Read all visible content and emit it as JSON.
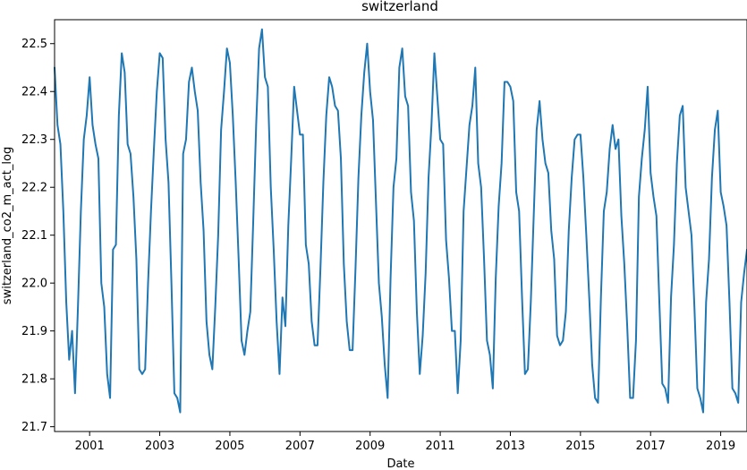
{
  "chart_data": {
    "type": "line",
    "title": "switzerland",
    "xlabel": "Date",
    "ylabel": "switzerland_co2_m_act_log",
    "xlim": [
      "2000-01",
      "2019-10"
    ],
    "ylim": [
      21.69,
      22.55
    ],
    "x_ticks": [
      {
        "date": "2001-01",
        "label": "2001"
      },
      {
        "date": "2003-01",
        "label": "2003"
      },
      {
        "date": "2005-01",
        "label": "2005"
      },
      {
        "date": "2007-01",
        "label": "2007"
      },
      {
        "date": "2009-01",
        "label": "2009"
      },
      {
        "date": "2011-01",
        "label": "2011"
      },
      {
        "date": "2013-01",
        "label": "2013"
      },
      {
        "date": "2015-01",
        "label": "2015"
      },
      {
        "date": "2017-01",
        "label": "2017"
      },
      {
        "date": "2019-01",
        "label": "2019"
      }
    ],
    "y_ticks": [
      {
        "value": 21.7,
        "label": "21.7"
      },
      {
        "value": 21.8,
        "label": "21.8"
      },
      {
        "value": 21.9,
        "label": "21.9"
      },
      {
        "value": 22.0,
        "label": "22.0"
      },
      {
        "value": 22.1,
        "label": "22.1"
      },
      {
        "value": 22.2,
        "label": "22.2"
      },
      {
        "value": 22.3,
        "label": "22.3"
      },
      {
        "value": 22.4,
        "label": "22.4"
      },
      {
        "value": 22.5,
        "label": "22.5"
      }
    ],
    "grid": false,
    "series": [
      {
        "color": "#1f77b4",
        "points": [
          [
            "2000-01",
            22.45
          ],
          [
            "2000-02",
            22.33
          ],
          [
            "2000-03",
            22.29
          ],
          [
            "2000-04",
            22.15
          ],
          [
            "2000-05",
            21.96
          ],
          [
            "2000-06",
            21.84
          ],
          [
            "2000-07",
            21.9
          ],
          [
            "2000-08",
            21.77
          ],
          [
            "2000-09",
            21.95
          ],
          [
            "2000-10",
            22.15
          ],
          [
            "2000-11",
            22.3
          ],
          [
            "2000-12",
            22.35
          ],
          [
            "2001-01",
            22.43
          ],
          [
            "2001-02",
            22.33
          ],
          [
            "2001-03",
            22.29
          ],
          [
            "2001-04",
            22.26
          ],
          [
            "2001-05",
            22.0
          ],
          [
            "2001-06",
            21.95
          ],
          [
            "2001-07",
            21.81
          ],
          [
            "2001-08",
            21.76
          ],
          [
            "2001-09",
            22.07
          ],
          [
            "2001-10",
            22.08
          ],
          [
            "2001-11",
            22.35
          ],
          [
            "2001-12",
            22.48
          ],
          [
            "2002-01",
            22.44
          ],
          [
            "2002-02",
            22.29
          ],
          [
            "2002-03",
            22.27
          ],
          [
            "2002-04",
            22.18
          ],
          [
            "2002-05",
            22.05
          ],
          [
            "2002-06",
            21.82
          ],
          [
            "2002-07",
            21.81
          ],
          [
            "2002-08",
            21.82
          ],
          [
            "2002-09",
            22.0
          ],
          [
            "2002-10",
            22.15
          ],
          [
            "2002-11",
            22.28
          ],
          [
            "2002-12",
            22.4
          ],
          [
            "2003-01",
            22.48
          ],
          [
            "2003-02",
            22.47
          ],
          [
            "2003-03",
            22.3
          ],
          [
            "2003-04",
            22.21
          ],
          [
            "2003-05",
            22.0
          ],
          [
            "2003-06",
            21.77
          ],
          [
            "2003-07",
            21.76
          ],
          [
            "2003-08",
            21.73
          ],
          [
            "2003-09",
            22.27
          ],
          [
            "2003-10",
            22.3
          ],
          [
            "2003-11",
            22.42
          ],
          [
            "2003-12",
            22.45
          ],
          [
            "2004-01",
            22.4
          ],
          [
            "2004-02",
            22.36
          ],
          [
            "2004-03",
            22.21
          ],
          [
            "2004-04",
            22.11
          ],
          [
            "2004-05",
            21.92
          ],
          [
            "2004-06",
            21.85
          ],
          [
            "2004-07",
            21.82
          ],
          [
            "2004-08",
            21.95
          ],
          [
            "2004-09",
            22.1
          ],
          [
            "2004-10",
            22.32
          ],
          [
            "2004-11",
            22.4
          ],
          [
            "2004-12",
            22.49
          ],
          [
            "2005-01",
            22.46
          ],
          [
            "2005-02",
            22.35
          ],
          [
            "2005-03",
            22.21
          ],
          [
            "2005-04",
            22.05
          ],
          [
            "2005-05",
            21.88
          ],
          [
            "2005-06",
            21.85
          ],
          [
            "2005-07",
            21.9
          ],
          [
            "2005-08",
            21.94
          ],
          [
            "2005-09",
            22.13
          ],
          [
            "2005-10",
            22.33
          ],
          [
            "2005-11",
            22.49
          ],
          [
            "2005-12",
            22.53
          ],
          [
            "2006-01",
            22.43
          ],
          [
            "2006-02",
            22.41
          ],
          [
            "2006-03",
            22.2
          ],
          [
            "2006-04",
            22.07
          ],
          [
            "2006-05",
            21.92
          ],
          [
            "2006-06",
            21.81
          ],
          [
            "2006-07",
            21.97
          ],
          [
            "2006-08",
            21.91
          ],
          [
            "2006-09",
            22.12
          ],
          [
            "2006-10",
            22.26
          ],
          [
            "2006-11",
            22.41
          ],
          [
            "2006-12",
            22.36
          ],
          [
            "2007-01",
            22.31
          ],
          [
            "2007-02",
            22.31
          ],
          [
            "2007-03",
            22.08
          ],
          [
            "2007-04",
            22.04
          ],
          [
            "2007-05",
            21.92
          ],
          [
            "2007-06",
            21.87
          ],
          [
            "2007-07",
            21.87
          ],
          [
            "2007-08",
            22.03
          ],
          [
            "2007-09",
            22.21
          ],
          [
            "2007-10",
            22.35
          ],
          [
            "2007-11",
            22.43
          ],
          [
            "2007-12",
            22.41
          ],
          [
            "2008-01",
            22.37
          ],
          [
            "2008-02",
            22.36
          ],
          [
            "2008-03",
            22.26
          ],
          [
            "2008-04",
            22.04
          ],
          [
            "2008-05",
            21.92
          ],
          [
            "2008-06",
            21.86
          ],
          [
            "2008-07",
            21.86
          ],
          [
            "2008-08",
            22.03
          ],
          [
            "2008-09",
            22.22
          ],
          [
            "2008-10",
            22.35
          ],
          [
            "2008-11",
            22.44
          ],
          [
            "2008-12",
            22.5
          ],
          [
            "2009-01",
            22.4
          ],
          [
            "2009-02",
            22.34
          ],
          [
            "2009-03",
            22.17
          ],
          [
            "2009-04",
            22.0
          ],
          [
            "2009-05",
            21.93
          ],
          [
            "2009-06",
            21.83
          ],
          [
            "2009-07",
            21.76
          ],
          [
            "2009-08",
            22.01
          ],
          [
            "2009-09",
            22.2
          ],
          [
            "2009-10",
            22.26
          ],
          [
            "2009-11",
            22.45
          ],
          [
            "2009-12",
            22.49
          ],
          [
            "2010-01",
            22.39
          ],
          [
            "2010-02",
            22.37
          ],
          [
            "2010-03",
            22.19
          ],
          [
            "2010-04",
            22.13
          ],
          [
            "2010-05",
            21.94
          ],
          [
            "2010-06",
            21.81
          ],
          [
            "2010-07",
            21.89
          ],
          [
            "2010-08",
            22.02
          ],
          [
            "2010-09",
            22.22
          ],
          [
            "2010-10",
            22.33
          ],
          [
            "2010-11",
            22.48
          ],
          [
            "2010-12",
            22.39
          ],
          [
            "2011-01",
            22.3
          ],
          [
            "2011-02",
            22.29
          ],
          [
            "2011-03",
            22.09
          ],
          [
            "2011-04",
            22.01
          ],
          [
            "2011-05",
            21.9
          ],
          [
            "2011-06",
            21.9
          ],
          [
            "2011-07",
            21.77
          ],
          [
            "2011-08",
            21.88
          ],
          [
            "2011-09",
            22.15
          ],
          [
            "2011-10",
            22.24
          ],
          [
            "2011-11",
            22.33
          ],
          [
            "2011-12",
            22.37
          ],
          [
            "2012-01",
            22.45
          ],
          [
            "2012-02",
            22.25
          ],
          [
            "2012-03",
            22.2
          ],
          [
            "2012-04",
            22.05
          ],
          [
            "2012-05",
            21.88
          ],
          [
            "2012-06",
            21.85
          ],
          [
            "2012-07",
            21.78
          ],
          [
            "2012-08",
            22.01
          ],
          [
            "2012-09",
            22.16
          ],
          [
            "2012-10",
            22.25
          ],
          [
            "2012-11",
            22.42
          ],
          [
            "2012-12",
            22.42
          ],
          [
            "2013-01",
            22.41
          ],
          [
            "2013-02",
            22.38
          ],
          [
            "2013-03",
            22.19
          ],
          [
            "2013-04",
            22.15
          ],
          [
            "2013-05",
            21.97
          ],
          [
            "2013-06",
            21.81
          ],
          [
            "2013-07",
            21.82
          ],
          [
            "2013-08",
            21.96
          ],
          [
            "2013-09",
            22.14
          ],
          [
            "2013-10",
            22.32
          ],
          [
            "2013-11",
            22.38
          ],
          [
            "2013-12",
            22.3
          ],
          [
            "2014-01",
            22.25
          ],
          [
            "2014-02",
            22.23
          ],
          [
            "2014-03",
            22.11
          ],
          [
            "2014-04",
            22.05
          ],
          [
            "2014-05",
            21.89
          ],
          [
            "2014-06",
            21.87
          ],
          [
            "2014-07",
            21.88
          ],
          [
            "2014-08",
            21.94
          ],
          [
            "2014-09",
            22.11
          ],
          [
            "2014-10",
            22.22
          ],
          [
            "2014-11",
            22.3
          ],
          [
            "2014-12",
            22.31
          ],
          [
            "2015-01",
            22.31
          ],
          [
            "2015-02",
            22.22
          ],
          [
            "2015-03",
            22.1
          ],
          [
            "2015-04",
            21.97
          ],
          [
            "2015-05",
            21.83
          ],
          [
            "2015-06",
            21.76
          ],
          [
            "2015-07",
            21.75
          ],
          [
            "2015-08",
            21.97
          ],
          [
            "2015-09",
            22.15
          ],
          [
            "2015-10",
            22.19
          ],
          [
            "2015-11",
            22.28
          ],
          [
            "2015-12",
            22.33
          ],
          [
            "2016-01",
            22.28
          ],
          [
            "2016-02",
            22.3
          ],
          [
            "2016-03",
            22.14
          ],
          [
            "2016-04",
            22.04
          ],
          [
            "2016-05",
            21.91
          ],
          [
            "2016-06",
            21.76
          ],
          [
            "2016-07",
            21.76
          ],
          [
            "2016-08",
            21.88
          ],
          [
            "2016-09",
            22.18
          ],
          [
            "2016-10",
            22.26
          ],
          [
            "2016-11",
            22.32
          ],
          [
            "2016-12",
            22.41
          ],
          [
            "2017-01",
            22.23
          ],
          [
            "2017-02",
            22.18
          ],
          [
            "2017-03",
            22.14
          ],
          [
            "2017-04",
            21.96
          ],
          [
            "2017-05",
            21.79
          ],
          [
            "2017-06",
            21.78
          ],
          [
            "2017-07",
            21.75
          ],
          [
            "2017-08",
            21.97
          ],
          [
            "2017-09",
            22.08
          ],
          [
            "2017-10",
            22.25
          ],
          [
            "2017-11",
            22.35
          ],
          [
            "2017-12",
            22.37
          ],
          [
            "2018-01",
            22.2
          ],
          [
            "2018-02",
            22.15
          ],
          [
            "2018-03",
            22.1
          ],
          [
            "2018-04",
            21.95
          ],
          [
            "2018-05",
            21.78
          ],
          [
            "2018-06",
            21.76
          ],
          [
            "2018-07",
            21.73
          ],
          [
            "2018-08",
            21.96
          ],
          [
            "2018-09",
            22.05
          ],
          [
            "2018-10",
            22.22
          ],
          [
            "2018-11",
            22.32
          ],
          [
            "2018-12",
            22.36
          ],
          [
            "2019-01",
            22.19
          ],
          [
            "2019-02",
            22.16
          ],
          [
            "2019-03",
            22.12
          ],
          [
            "2019-04",
            21.96
          ],
          [
            "2019-05",
            21.78
          ],
          [
            "2019-06",
            21.77
          ],
          [
            "2019-07",
            21.75
          ],
          [
            "2019-08",
            21.96
          ],
          [
            "2019-09",
            22.02
          ],
          [
            "2019-10",
            22.07
          ]
        ]
      }
    ]
  }
}
